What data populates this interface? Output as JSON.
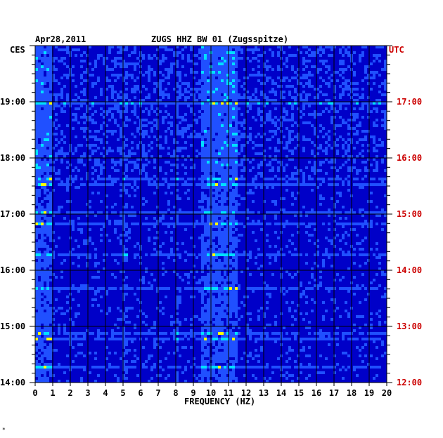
{
  "chart_data": {
    "type": "heatmap",
    "title_left": "Apr28,2011",
    "title_center": "ZUGS HHZ BW 01 (Zugsspitze)",
    "left_timezone": "CES",
    "right_timezone": "UTC",
    "xlabel": "FREQUENCY (HZ)",
    "xlim": [
      0,
      20
    ],
    "x_ticks": [
      "0",
      "1",
      "2",
      "3",
      "4",
      "5",
      "6",
      "7",
      "8",
      "9",
      "10",
      "11",
      "12",
      "13",
      "14",
      "15",
      "16",
      "17",
      "18",
      "19",
      "20"
    ],
    "left_time_labels": [
      "19:00",
      "18:00",
      "17:00",
      "16:00",
      "15:00",
      "14:00"
    ],
    "right_time_labels": [
      "17:00",
      "16:00",
      "15:00",
      "14:00",
      "13:00",
      "12:00"
    ],
    "time_range_hours": 6,
    "colors": {
      "low": "#0000c8",
      "mid": "#2050ff",
      "high": "#00e0ff",
      "peak": "#ffff00",
      "max": "#ff2000",
      "utc_label": "#cc0000"
    },
    "energy_bands_hz": [
      {
        "freq": [
          0,
          1
        ],
        "level": "high"
      },
      {
        "freq": [
          9.5,
          11.5
        ],
        "level": "high"
      },
      {
        "freq": [
          8,
          8.2
        ],
        "level": "medium"
      },
      {
        "freq": [
          5,
          5.2
        ],
        "level": "medium"
      }
    ]
  },
  "footer_mark": "*"
}
